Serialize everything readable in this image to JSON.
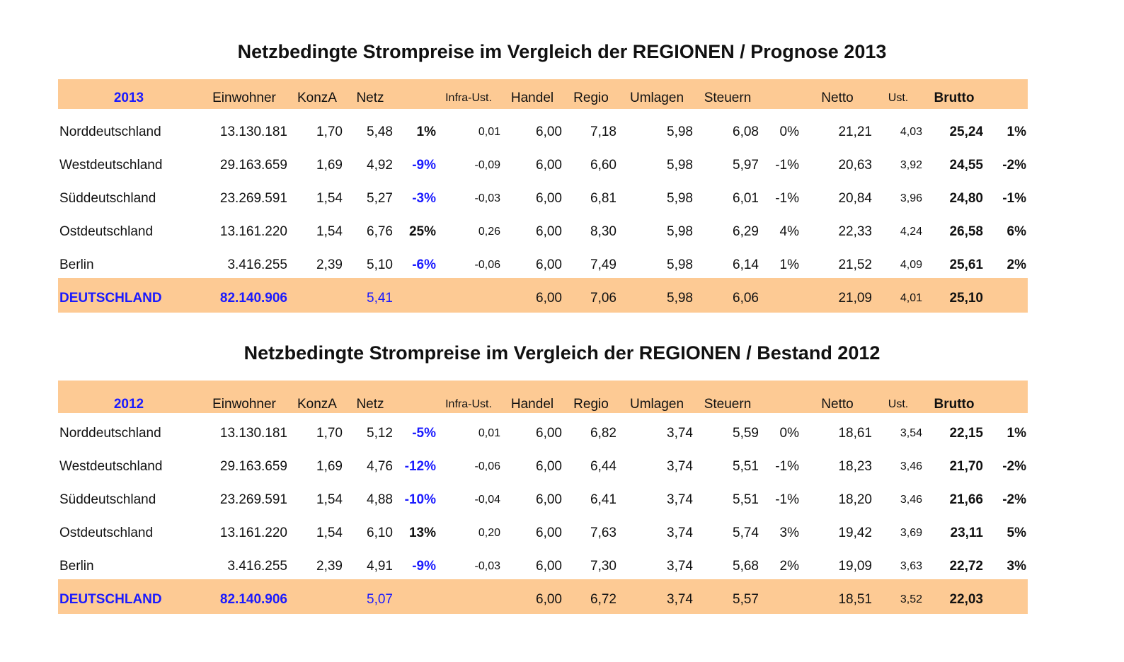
{
  "tables": [
    {
      "title": "Netzbedingte Strompreise im Vergleich der REGIONEN  / Prognose 2013",
      "header": {
        "year": "2013",
        "einwohner": "Einwohner",
        "konza": "KonzA",
        "netz": "Netz",
        "infra": "Infra-Ust.",
        "handel": "Handel",
        "regio": "Regio",
        "umlagen": "Umlagen",
        "steuern": "Steuern",
        "netto": "Netto",
        "ust": "Ust.",
        "brutto": "Brutto"
      },
      "rows": [
        {
          "region": "Norddeutschland",
          "einwohner": "13.130.181",
          "konza": "1,70",
          "netz": "5,48",
          "netz_pct": "1%",
          "infra": "0,01",
          "handel": "6,00",
          "regio": "7,18",
          "umlagen": "5,98",
          "steuern": "6,08",
          "steuern_pct": "0%",
          "netto": "21,21",
          "ust": "4,03",
          "brutto": "25,24",
          "brutto_pct": "1%"
        },
        {
          "region": "Westdeutschland",
          "einwohner": "29.163.659",
          "konza": "1,69",
          "netz": "4,92",
          "netz_pct": "-9%",
          "infra": "-0,09",
          "handel": "6,00",
          "regio": "6,60",
          "umlagen": "5,98",
          "steuern": "5,97",
          "steuern_pct": "-1%",
          "netto": "20,63",
          "ust": "3,92",
          "brutto": "24,55",
          "brutto_pct": "-2%"
        },
        {
          "region": "Süddeutschland",
          "einwohner": "23.269.591",
          "konza": "1,54",
          "netz": "5,27",
          "netz_pct": "-3%",
          "infra": "-0,03",
          "handel": "6,00",
          "regio": "6,81",
          "umlagen": "5,98",
          "steuern": "6,01",
          "steuern_pct": "-1%",
          "netto": "20,84",
          "ust": "3,96",
          "brutto": "24,80",
          "brutto_pct": "-1%"
        },
        {
          "region": "Ostdeutschland",
          "einwohner": "13.161.220",
          "konza": "1,54",
          "netz": "6,76",
          "netz_pct": "25%",
          "infra": "0,26",
          "handel": "6,00",
          "regio": "8,30",
          "umlagen": "5,98",
          "steuern": "6,29",
          "steuern_pct": "4%",
          "netto": "22,33",
          "ust": "4,24",
          "brutto": "26,58",
          "brutto_pct": "6%"
        },
        {
          "region": "Berlin",
          "einwohner": "3.416.255",
          "konza": "2,39",
          "netz": "5,10",
          "netz_pct": "-6%",
          "infra": "-0,06",
          "handel": "6,00",
          "regio": "7,49",
          "umlagen": "5,98",
          "steuern": "6,14",
          "steuern_pct": "1%",
          "netto": "21,52",
          "ust": "4,09",
          "brutto": "25,61",
          "brutto_pct": "2%"
        }
      ],
      "total": {
        "region": "DEUTSCHLAND",
        "einwohner": "82.140.906",
        "netz": "5,41",
        "handel": "6,00",
        "regio": "7,06",
        "umlagen": "5,98",
        "steuern": "6,06",
        "netto": "21,09",
        "ust": "4,01",
        "brutto": "25,10"
      }
    },
    {
      "title": "Netzbedingte Strompreise im Vergleich der REGIONEN  / Bestand 2012",
      "header": {
        "year": "2012",
        "einwohner": "Einwohner",
        "konza": "KonzA",
        "netz": "Netz",
        "infra": "Infra-Ust.",
        "handel": "Handel",
        "regio": "Regio",
        "umlagen": "Umlagen",
        "steuern": "Steuern",
        "netto": "Netto",
        "ust": "Ust.",
        "brutto": "Brutto"
      },
      "rows": [
        {
          "region": "Norddeutschland",
          "einwohner": "13.130.181",
          "konza": "1,70",
          "netz": "5,12",
          "netz_pct": "-5%",
          "infra": "0,01",
          "handel": "6,00",
          "regio": "6,82",
          "umlagen": "3,74",
          "steuern": "5,59",
          "steuern_pct": "0%",
          "netto": "18,61",
          "ust": "3,54",
          "brutto": "22,15",
          "brutto_pct": "1%"
        },
        {
          "region": "Westdeutschland",
          "einwohner": "29.163.659",
          "konza": "1,69",
          "netz": "4,76",
          "netz_pct": "-12%",
          "infra": "-0,06",
          "handel": "6,00",
          "regio": "6,44",
          "umlagen": "3,74",
          "steuern": "5,51",
          "steuern_pct": "-1%",
          "netto": "18,23",
          "ust": "3,46",
          "brutto": "21,70",
          "brutto_pct": "-2%"
        },
        {
          "region": "Süddeutschland",
          "einwohner": "23.269.591",
          "konza": "1,54",
          "netz": "4,88",
          "netz_pct": "-10%",
          "infra": "-0,04",
          "handel": "6,00",
          "regio": "6,41",
          "umlagen": "3,74",
          "steuern": "5,51",
          "steuern_pct": "-1%",
          "netto": "18,20",
          "ust": "3,46",
          "brutto": "21,66",
          "brutto_pct": "-2%"
        },
        {
          "region": "Ostdeutschland",
          "einwohner": "13.161.220",
          "konza": "1,54",
          "netz": "6,10",
          "netz_pct": "13%",
          "infra": "0,20",
          "handel": "6,00",
          "regio": "7,63",
          "umlagen": "3,74",
          "steuern": "5,74",
          "steuern_pct": "3%",
          "netto": "19,42",
          "ust": "3,69",
          "brutto": "23,11",
          "brutto_pct": "5%"
        },
        {
          "region": "Berlin",
          "einwohner": "3.416.255",
          "konza": "2,39",
          "netz": "4,91",
          "netz_pct": "-9%",
          "infra": "-0,03",
          "handel": "6,00",
          "regio": "7,30",
          "umlagen": "3,74",
          "steuern": "5,68",
          "steuern_pct": "2%",
          "netto": "19,09",
          "ust": "3,63",
          "brutto": "22,72",
          "brutto_pct": "3%"
        }
      ],
      "total": {
        "region": "DEUTSCHLAND",
        "einwohner": "82.140.906",
        "netz": "5,07",
        "handel": "6,00",
        "regio": "6,72",
        "umlagen": "3,74",
        "steuern": "5,57",
        "netto": "18,51",
        "ust": "3,52",
        "brutto": "22,03"
      }
    }
  ],
  "colors": {
    "band": "#fdca94",
    "blue": "#1a1aff",
    "text": "#111111"
  }
}
